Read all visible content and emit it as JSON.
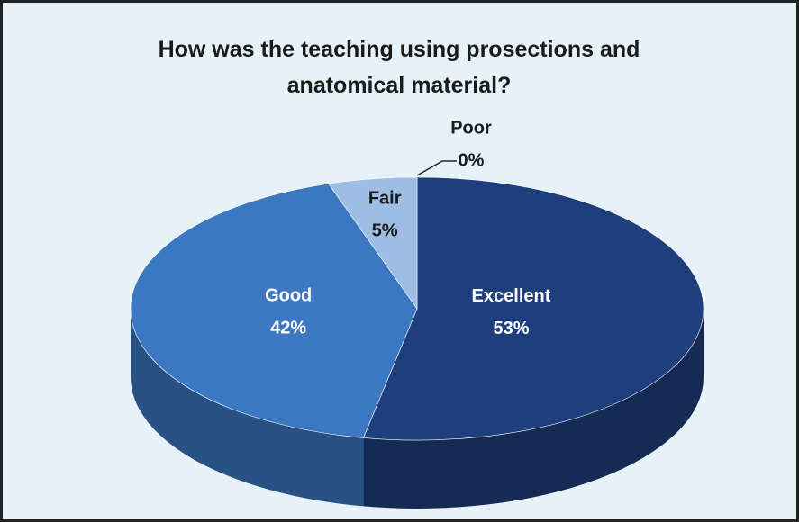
{
  "chart_data": {
    "type": "pie3d",
    "title": "How was the teaching using prosections and anatomical material?",
    "categories": [
      "Excellent",
      "Good",
      "Fair",
      "Poor"
    ],
    "values": [
      53,
      42,
      5,
      0
    ],
    "value_labels": [
      "53%",
      "42%",
      "5%",
      "0%"
    ],
    "colors": [
      "#1f3f7c",
      "#3b78c1",
      "#9dbde3",
      "#c8dbef"
    ]
  }
}
